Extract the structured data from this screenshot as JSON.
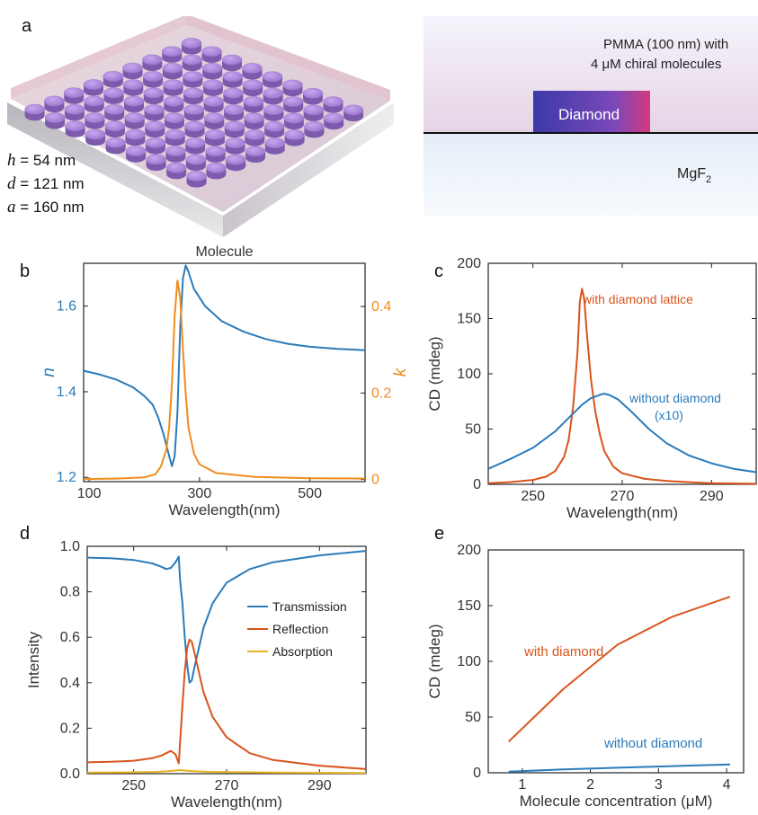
{
  "panel_a": {
    "letter": "a",
    "dims": [
      {
        "symbol": "h",
        "rest": " = 54 nm"
      },
      {
        "symbol": "d",
        "rest": " = 121 nm"
      },
      {
        "symbol": "a",
        "rest": " = 160 nm"
      }
    ],
    "schematic": {
      "pmma_line1": "PMMA (100 nm) with",
      "pmma_line2": "4 μM chiral molecules",
      "diamond_label": "Diamond",
      "substrate_label": "MgF",
      "substrate_sub": "2"
    }
  },
  "colors": {
    "blue": "#2b7bba",
    "orange_red": "#d9541c",
    "orange": "#f08c1e",
    "yellow": "#e6b422",
    "disk": "#9a74c9"
  },
  "chart_data": [
    {
      "id": "b",
      "letter": "b",
      "type": "line",
      "title": "Molecule",
      "xlabel": "Wavelength(nm)",
      "ylabel": "n",
      "y2label": "k",
      "xlim": [
        90,
        600
      ],
      "ylim": [
        1.19,
        1.7
      ],
      "y2lim": [
        -0.005,
        0.5
      ],
      "xticks": [
        100,
        300,
        500
      ],
      "yticks": [
        1.2,
        1.4,
        1.6
      ],
      "y2ticks": [
        0,
        0.2,
        0.4
      ],
      "y2tick_labels": [
        "0",
        "0.2",
        "0.4"
      ],
      "series": [
        {
          "axis": "left",
          "color": "#2b7bba",
          "x": [
            90,
            120,
            150,
            180,
            200,
            215,
            225,
            235,
            245,
            250,
            255,
            260,
            265,
            270,
            275,
            280,
            290,
            310,
            340,
            380,
            420,
            460,
            500,
            550,
            600
          ],
          "y": [
            1.449,
            1.44,
            1.428,
            1.41,
            1.39,
            1.37,
            1.34,
            1.3,
            1.25,
            1.226,
            1.25,
            1.35,
            1.55,
            1.665,
            1.695,
            1.68,
            1.64,
            1.6,
            1.565,
            1.54,
            1.523,
            1.512,
            1.505,
            1.5,
            1.497
          ]
        },
        {
          "axis": "right",
          "color": "#f08c1e",
          "x": [
            90,
            150,
            200,
            220,
            230,
            240,
            245,
            250,
            255,
            260,
            265,
            270,
            275,
            280,
            290,
            300,
            330,
            400,
            500,
            600
          ],
          "y": [
            0.001,
            0.002,
            0.005,
            0.012,
            0.03,
            0.07,
            0.12,
            0.22,
            0.38,
            0.46,
            0.42,
            0.3,
            0.2,
            0.12,
            0.06,
            0.035,
            0.015,
            0.006,
            0.003,
            0.002
          ]
        }
      ]
    },
    {
      "id": "c",
      "letter": "c",
      "type": "line",
      "xlabel": "Wavelength(nm)",
      "ylabel": "CD (mdeg)",
      "xlim": [
        240,
        300
      ],
      "ylim": [
        0,
        200
      ],
      "xticks": [
        250,
        270,
        290
      ],
      "yticks": [
        0,
        50,
        100,
        150,
        200
      ],
      "series": [
        {
          "name": "with diamond lattice",
          "color": "#d9541c",
          "x": [
            240,
            245,
            250,
            253,
            255,
            257,
            258,
            259,
            260,
            260.5,
            261,
            261.5,
            262,
            263,
            264,
            265,
            266,
            268,
            270,
            275,
            280,
            290,
            300
          ],
          "y": [
            1,
            2,
            4,
            7,
            12,
            25,
            40,
            70,
            120,
            165,
            177,
            168,
            140,
            95,
            65,
            45,
            30,
            16,
            10,
            5,
            3,
            1,
            0.5
          ]
        },
        {
          "name": "without diamond (x10)",
          "color": "#2b7bba",
          "x": [
            240,
            245,
            250,
            255,
            258,
            261,
            263,
            265,
            266,
            267,
            269,
            272,
            276,
            280,
            285,
            290,
            295,
            300
          ],
          "y": [
            14,
            23,
            33,
            48,
            60,
            72,
            78,
            81,
            82,
            81,
            77,
            66,
            50,
            37,
            26,
            19,
            14,
            11
          ]
        }
      ],
      "annotations": [
        "with diamond lattice",
        "without diamond",
        "(x10)"
      ]
    },
    {
      "id": "d",
      "letter": "d",
      "type": "line",
      "xlabel": "Wavelength(nm)",
      "ylabel": "Intensity",
      "xlim": [
        240,
        300
      ],
      "ylim": [
        0,
        1.0
      ],
      "xticks": [
        250,
        270,
        290
      ],
      "yticks": [
        0.0,
        0.2,
        0.4,
        0.6,
        0.8,
        1.0
      ],
      "ytick_labels": [
        "0.0",
        "0.2",
        "0.4",
        "0.6",
        "0.8",
        "1.0"
      ],
      "legend_position": "center-right",
      "series": [
        {
          "name": "Transmission",
          "color": "#2b7bba",
          "x": [
            240,
            245,
            250,
            254,
            256,
            257,
            258,
            259,
            259.7,
            260,
            260.5,
            261,
            261.5,
            262,
            262.5,
            263,
            264,
            265,
            267,
            270,
            275,
            280,
            290,
            300
          ],
          "y": [
            0.95,
            0.948,
            0.94,
            0.925,
            0.91,
            0.9,
            0.905,
            0.93,
            0.955,
            0.85,
            0.75,
            0.6,
            0.48,
            0.4,
            0.41,
            0.46,
            0.55,
            0.64,
            0.75,
            0.84,
            0.9,
            0.93,
            0.96,
            0.98
          ]
        },
        {
          "name": "Reflection",
          "color": "#d9541c",
          "x": [
            240,
            245,
            250,
            254,
            256,
            257,
            258,
            259,
            259.7,
            260,
            260.5,
            261,
            261.5,
            262,
            262.5,
            263,
            264,
            265,
            267,
            270,
            275,
            280,
            290,
            300
          ],
          "y": [
            0.05,
            0.052,
            0.057,
            0.068,
            0.08,
            0.09,
            0.1,
            0.085,
            0.045,
            0.14,
            0.3,
            0.45,
            0.55,
            0.59,
            0.58,
            0.54,
            0.45,
            0.36,
            0.25,
            0.16,
            0.09,
            0.06,
            0.035,
            0.02
          ]
        },
        {
          "name": "Absorption",
          "color": "#e6b422",
          "x": [
            240,
            250,
            255,
            258,
            260,
            262,
            265,
            270,
            280,
            290,
            300
          ],
          "y": [
            0.005,
            0.006,
            0.008,
            0.012,
            0.016,
            0.012,
            0.009,
            0.007,
            0.005,
            0.004,
            0.003
          ]
        }
      ]
    },
    {
      "id": "e",
      "letter": "e",
      "type": "line",
      "xlabel": "Molecule concentration (μM)",
      "ylabel": "CD (mdeg)",
      "xlim": [
        0.5,
        4.25
      ],
      "ylim": [
        0,
        200
      ],
      "xticks": [
        1,
        2,
        3,
        4
      ],
      "yticks": [
        0,
        50,
        100,
        150,
        200
      ],
      "series": [
        {
          "name": "with diamond",
          "color": "#d9541c",
          "x": [
            0.8,
            1.6,
            2.4,
            3.2,
            4.05
          ],
          "y": [
            28,
            75,
            115,
            140,
            158
          ]
        },
        {
          "name": "without diamond",
          "color": "#2b7bba",
          "x": [
            0.8,
            1.6,
            2.4,
            3.2,
            4.05
          ],
          "y": [
            1,
            3,
            4.5,
            6,
            7.5
          ]
        }
      ],
      "annotations": [
        "with diamond",
        "without diamond"
      ]
    }
  ]
}
